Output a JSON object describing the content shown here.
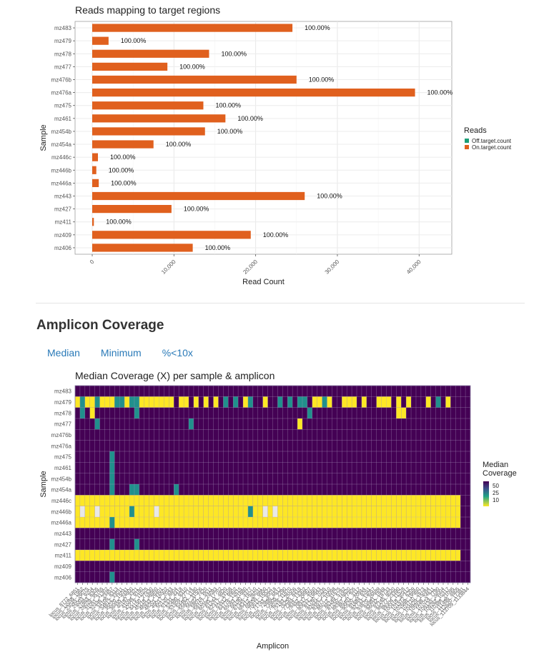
{
  "section": {
    "title": "Amplicon Coverage"
  },
  "tabs": [
    "Median",
    "Minimum",
    "%<10x"
  ],
  "colors": {
    "on_target": "#e0601e",
    "off_target": "#1b9e77",
    "heat_low": "#fde725",
    "heat_mid": "#21908c",
    "heat_teal": "#20a386",
    "heat_high": "#440154"
  },
  "chart_data": [
    {
      "type": "bar",
      "orientation": "horizontal",
      "title": "Reads mapping to target regions",
      "xlabel": "Read Count",
      "ylabel": "Sample",
      "xlim": [
        0,
        44000
      ],
      "xticks": [
        0,
        10000,
        20000,
        30000,
        40000
      ],
      "xtick_labels": [
        "0",
        "10,000",
        "20,000",
        "30,000",
        "40,000"
      ],
      "grid": true,
      "legend": {
        "title": "Reads",
        "position": "right",
        "entries": [
          "Off.target.count",
          "On.target.count"
        ]
      },
      "categories": [
        "mz483",
        "mz479",
        "mz478",
        "mz477",
        "mz476b",
        "mz476a",
        "mz475",
        "mz461",
        "mz454b",
        "mz454a",
        "mz446c",
        "mz446b",
        "mz446a",
        "mz443",
        "mz427",
        "mz411",
        "mz409",
        "mz406"
      ],
      "series": [
        {
          "name": "Off.target.count",
          "values": [
            0,
            0,
            0,
            0,
            0,
            0,
            0,
            0,
            0,
            0,
            0,
            0,
            0,
            0,
            0,
            0,
            0,
            0
          ]
        },
        {
          "name": "On.target.count",
          "values": [
            24500,
            2000,
            14300,
            9200,
            25000,
            39500,
            13600,
            16300,
            13800,
            7500,
            700,
            500,
            800,
            26000,
            9700,
            200,
            19400,
            12300
          ]
        }
      ],
      "data_labels": [
        "100.00%",
        "100.00%",
        "100.00%",
        "100.00%",
        "100.00%",
        "100.00%",
        "100.00%",
        "100.00%",
        "100.00%",
        "100.00%",
        "100.00%",
        "100.00%",
        "100.00%",
        "100.00%",
        "100.00%",
        "100.00%",
        "100.00%",
        "100.00%"
      ]
    },
    {
      "type": "heatmap",
      "title": "Median Coverage (X) per sample & amplicon",
      "xlabel": "Amplicon",
      "ylabel": "Sample",
      "legend": {
        "title_lines": [
          "Median",
          "Coverage"
        ],
        "position": "right",
        "labels": [
          "50",
          "25",
          "10"
        ]
      },
      "grid": true,
      "rows": [
        "mz483",
        "mz479",
        "mz478",
        "mz477",
        "mz476b",
        "mz476a",
        "mz475",
        "mz461",
        "mz454b",
        "mz454a",
        "mz446c",
        "mz446b",
        "mz446a",
        "mz443",
        "mz427",
        "mz411",
        "mz409",
        "mz406"
      ],
      "columns": [
        "locus_8772_6851",
        "locus_12058_1962",
        "locus_23045_29075",
        "locus_25003_9204",
        "locus_27863_8305",
        "locus_28029_35765",
        "locus_31051_31302",
        "locus_32446_23457",
        "locus_34106_8313",
        "locus_34813_33011",
        "locus_35020_15041",
        "locus_36455_24800",
        "locus_40187_3321",
        "locus_41094_9180",
        "locus_42275_11025",
        "locus_44150_27430",
        "locus_45218_38960",
        "locus_46933_29401",
        "locus_48201_16502",
        "locus_49017_2043",
        "locus_50120_8804",
        "locus_51331_4418",
        "locus_52480_9310",
        "locus_53309_27714",
        "locus_54462_1180",
        "locus_55807_31506",
        "locus_56922_7420",
        "locus_58014_5511",
        "locus_59107_24093",
        "locus_60385_17702",
        "locus_61244_4820",
        "locus_62317_33108",
        "locus_63512_9902",
        "locus_64776_12615",
        "locus_65083_21880",
        "locus_66190_3377",
        "locus_67345_18210",
        "locus_68412_26031",
        "locus_69558_9950",
        "locus_70611_15522",
        "locus_71743_30018",
        "locus_72896_6612",
        "locus_73905_2290",
        "locus_74028_11870",
        "locus_75193_25506",
        "locus_76255_8418",
        "locus_77384_13302",
        "locus_78452_29907",
        "locus_79517_4560",
        "locus_80633_19843",
        "locus_81760_7035",
        "locus_82844_22510",
        "locus_83977_10098",
        "locus_85012_31675",
        "locus_86149_5782",
        "locus_87250_16620",
        "locus_88367_27405",
        "locus_89401_3112",
        "locus_90520_20944",
        "locus_91684_9261",
        "locus_92733_14057",
        "locus_93870_26689",
        "locus_94981_1849",
        "locus_96032_18733",
        "locus_97145_8020",
        "locus_98277_23390",
        "locus_99304_11528",
        "locus_100418_30412",
        "locus_101572_6209",
        "locus_102688_19960",
        "locus_103710_2673",
        "locus_104829_15084",
        "locus_105938_24611",
        "locus_107014_7790",
        "locus_108135_28004",
        "locus_109262_10317",
        "locus_110388_21095",
        "locus_111496_4905",
        "locus_112620_17381",
        "locus_113709_1133844"
      ],
      "values": [
        "000000000000000000000000000000000000000000000000000000000000000000000000000000",
        "323323332232233333330330303030202032003002020220332300333030033303030003020300",
        "020300000000200000000000000000000000000000000002000000000000000003300000000000",
        "000020000000000000000002000000000000000000000300000000000000000000000000000000",
        "000000000000000000000000000000000000000000000000000000000000000000000000000000",
        "000000000000000000000000000000000000000000000000000000000000000000000000000000",
        "000000020000000000000000000000000000000000000000000000000000000000000000000000",
        "000000020000000000000000000000000000000000000000000000000000000000000000000000",
        "000000020000000000000000000000000000000000000000000000000000000000000000000000",
        "000000020002200000002000000000000000000000000000000000000000000000000000000000",
        "333333333333333333333333333333333333333333333333333333333333333333333333333333",
        "313313333332333313333333333333333332331313333333333333333333333333333333333333",
        "333333323333333333333333333333333333333333333333333333333333333333333333333333",
        "000000000000000000000000000000000000000000000000000000000000000000000000000000",
        "000000020000200000000000000000000000000000000000000000000000000000000000000000",
        "333333333333333333333333333333333333333333333333333333333333333333333333333333",
        "000000000000000000000000000000000000000000000000000000000000000000000000000000",
        "000000020000000000000000000000000000000000000000000000000000000000000000000000"
      ]
    }
  ]
}
